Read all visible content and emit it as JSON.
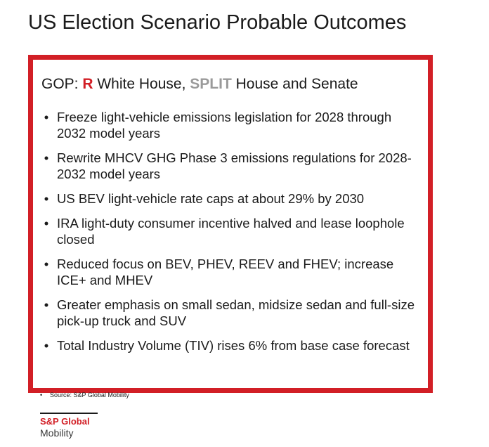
{
  "title": "US Election Scenario Probable Outcomes",
  "scenario": {
    "heading_prefix": "GOP: ",
    "heading_r": "R",
    "heading_middle": " White House, ",
    "heading_split": "SPLIT",
    "heading_suffix": " House and Senate",
    "bullet_symbol": "•",
    "bullets": [
      "Freeze light-vehicle emissions legislation for 2028 through 2032 model years",
      "Rewrite MHCV GHG Phase 3 emissions regulations for 2028-2032 model years",
      "US BEV light-vehicle rate caps at about 29% by 2030",
      "IRA light-duty consumer incentive halved and lease loophole closed",
      "Reduced focus on BEV, PHEV, REEV and FHEV; increase ICE+ and MHEV",
      "Greater emphasis on small sedan, midsize sedan and full-size pick-up truck and SUV",
      "Total Industry Volume (TIV) rises 6% from base case forecast"
    ]
  },
  "source": {
    "bullet": "•",
    "text": "Source: S&P Global Mobility"
  },
  "logo": {
    "line1": "S&P Global",
    "line2": "Mobility"
  },
  "colors": {
    "accent_red": "#d21f26",
    "split_gray": "#9a9a9a",
    "text": "#1a1a1a"
  }
}
